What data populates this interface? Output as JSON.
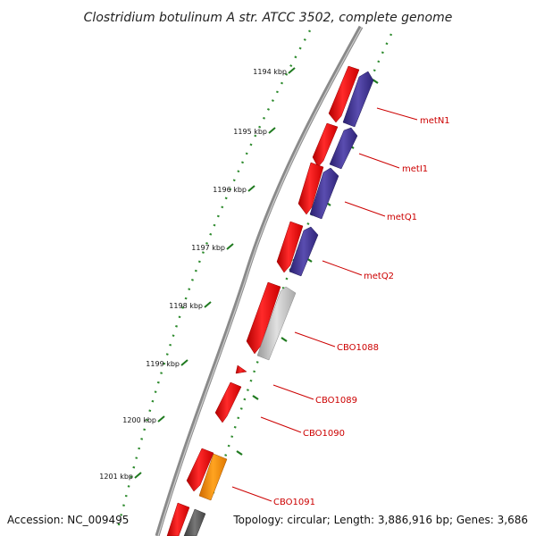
{
  "title": "Clostridium botulinum A str. ATCC 3502, complete genome",
  "accession": "Accession: NC_009495",
  "topology": "Topology: circular; Length: 3,886,916 bp; Genes: 3,686",
  "colors": {
    "forward_gene": "#ee0000",
    "reverse_gene": "#3a2f8c",
    "pseudo_gene": "#c0c0c0",
    "orange_gene": "#ff8c00",
    "dark_gene": "#555555",
    "backbone": "#888888",
    "ticks": "#1f7a1f",
    "label": "#cc0000"
  },
  "kbp_ticks": [
    "1194 kbp",
    "1195 kbp",
    "1196 kbp",
    "1197 kbp",
    "1198 kbp",
    "1199 kbp",
    "1200 kbp",
    "1201 kbp"
  ],
  "gene_labels": [
    "metN1",
    "metI1",
    "metQ1",
    "metQ2",
    "CBO1088",
    "CBO1089",
    "CBO1090",
    "CBO1091"
  ]
}
